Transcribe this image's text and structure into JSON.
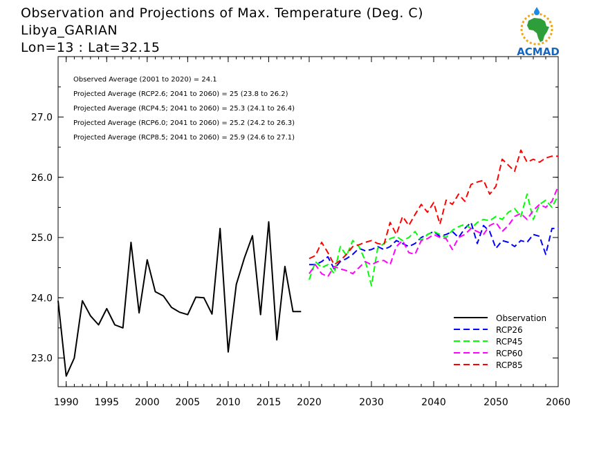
{
  "header": {
    "title": "Observation and Projections of Max. Temperature (Deg. C)",
    "location": "Libya_GARIAN",
    "coords": "Lon=13 : Lat=32.15"
  },
  "logo": {
    "text": "ACMAD",
    "icon": "africa-map-icon"
  },
  "colors": {
    "observation": "#000000",
    "rcp26": "#0000ff",
    "rcp45": "#00ff00",
    "rcp60": "#ff00ff",
    "rcp85": "#ff0000",
    "logo_text": "#1565c0",
    "logo_africa": "#2e9e3a",
    "logo_sun": "#f2a518"
  },
  "chart_data": {
    "type": "line",
    "title": "Observation and Projections of Max. Temperature (Deg. C)",
    "xlabel": "",
    "ylabel": "",
    "xlim": [
      1989,
      2060
    ],
    "ylim": [
      22.5,
      27.5
    ],
    "grid": false,
    "legend_position": "bottom-right",
    "x_tick_labels": [
      "1990",
      "1995",
      "2000",
      "2005",
      "2010",
      "2015",
      "2020",
      "2030",
      "2040",
      "2050",
      "2060"
    ],
    "y_tick_labels": [
      "23.0",
      "24.0",
      "25.0",
      "26.0",
      "27.0"
    ],
    "annotations": [
      "Observed Average (2001 to 2020) = 24.1",
      "Projected Average (RCP2.6; 2041 to 2060) = 25 (23.8 to 26.2)",
      "Projected Average (RCP4.5; 2041 to 2060) = 25.3 (24.1 to 26.4)",
      "Projected Average (RCP6.0; 2041 to 2060) = 25.2 (24.2 to 26.3)",
      "Projected Average (RCP8.5; 2041 to 2060) = 25.9 (24.6 to 27.1)"
    ],
    "series": [
      {
        "name": "Observation",
        "color": "#000000",
        "dash": false,
        "x": [
          1989,
          1990,
          1991,
          1992,
          1993,
          1994,
          1995,
          1996,
          1997,
          1998,
          1999,
          2000,
          2001,
          2002,
          2003,
          2004,
          2005,
          2006,
          2007,
          2008,
          2009,
          2010,
          2011,
          2012,
          2013,
          2014,
          2015,
          2016,
          2017,
          2018,
          2019
        ],
        "values": [
          23.95,
          22.7,
          23.0,
          23.95,
          23.7,
          23.55,
          23.82,
          23.55,
          23.5,
          24.92,
          23.75,
          24.63,
          24.1,
          24.03,
          23.84,
          23.76,
          23.72,
          24.01,
          24.0,
          23.73,
          25.15,
          23.1,
          24.22,
          24.66,
          25.03,
          23.72,
          25.26,
          23.3,
          24.52,
          23.77,
          23.77
        ]
      },
      {
        "name": "RCP26",
        "color": "#0000ff",
        "dash": true,
        "x": [
          2020,
          2021,
          2022,
          2023,
          2024,
          2025,
          2026,
          2027,
          2028,
          2029,
          2030,
          2031,
          2032,
          2033,
          2034,
          2035,
          2036,
          2037,
          2038,
          2039,
          2040,
          2041,
          2042,
          2043,
          2044,
          2045,
          2046,
          2047,
          2048,
          2049,
          2050,
          2051,
          2052,
          2053,
          2054,
          2055,
          2056,
          2057,
          2058,
          2059,
          2060
        ],
        "values": [
          24.55,
          24.55,
          24.6,
          24.68,
          24.48,
          24.6,
          24.65,
          24.72,
          24.82,
          24.78,
          24.8,
          24.85,
          24.8,
          24.85,
          24.95,
          24.9,
          24.85,
          24.9,
          25.0,
          25.05,
          25.1,
          25.02,
          25.05,
          25.1,
          25.0,
          25.15,
          25.25,
          24.9,
          25.2,
          25.1,
          24.82,
          24.95,
          24.92,
          24.85,
          24.95,
          24.92,
          25.05,
          25.02,
          24.72,
          25.15,
          25.15
        ]
      },
      {
        "name": "RCP45",
        "color": "#00ff00",
        "dash": true,
        "x": [
          2020,
          2021,
          2022,
          2023,
          2024,
          2025,
          2026,
          2027,
          2028,
          2029,
          2030,
          2031,
          2032,
          2033,
          2034,
          2035,
          2036,
          2037,
          2038,
          2039,
          2040,
          2041,
          2042,
          2043,
          2044,
          2045,
          2046,
          2047,
          2048,
          2049,
          2050,
          2051,
          2052,
          2053,
          2054,
          2055,
          2056,
          2057,
          2058,
          2059,
          2060
        ],
        "values": [
          24.3,
          24.6,
          24.5,
          24.55,
          24.4,
          24.85,
          24.7,
          24.95,
          24.85,
          24.62,
          24.2,
          24.82,
          24.9,
          24.98,
          25.02,
          24.95,
          25.0,
          25.1,
          24.95,
          25.05,
          25.1,
          25.05,
          25.0,
          25.12,
          25.18,
          25.22,
          25.15,
          25.25,
          25.3,
          25.28,
          25.35,
          25.3,
          25.42,
          25.48,
          25.35,
          25.72,
          25.3,
          25.55,
          25.62,
          25.5,
          25.7
        ]
      },
      {
        "name": "RCP60",
        "color": "#ff00ff",
        "dash": true,
        "x": [
          2020,
          2021,
          2022,
          2023,
          2024,
          2025,
          2026,
          2027,
          2028,
          2029,
          2030,
          2031,
          2032,
          2033,
          2034,
          2035,
          2036,
          2037,
          2038,
          2039,
          2040,
          2041,
          2042,
          2043,
          2044,
          2045,
          2046,
          2047,
          2048,
          2049,
          2050,
          2051,
          2052,
          2053,
          2054,
          2055,
          2056,
          2057,
          2058,
          2059,
          2060
        ],
        "values": [
          24.4,
          24.55,
          24.4,
          24.35,
          24.52,
          24.48,
          24.45,
          24.4,
          24.5,
          24.6,
          24.55,
          24.6,
          24.62,
          24.55,
          24.85,
          24.95,
          24.75,
          24.72,
          24.95,
          24.98,
          25.05,
          25.0,
          24.98,
          24.8,
          25.0,
          25.05,
          25.15,
          25.1,
          25.05,
          25.2,
          25.25,
          25.1,
          25.2,
          25.35,
          25.4,
          25.3,
          25.45,
          25.55,
          25.5,
          25.6,
          25.85
        ]
      },
      {
        "name": "RCP85",
        "color": "#ff0000",
        "dash": true,
        "x": [
          2020,
          2021,
          2022,
          2023,
          2024,
          2025,
          2026,
          2027,
          2028,
          2029,
          2030,
          2031,
          2032,
          2033,
          2034,
          2035,
          2036,
          2037,
          2038,
          2039,
          2040,
          2041,
          2042,
          2043,
          2044,
          2045,
          2046,
          2047,
          2048,
          2049,
          2050,
          2051,
          2052,
          2053,
          2054,
          2055,
          2056,
          2057,
          2058,
          2059,
          2060
        ],
        "values": [
          24.65,
          24.7,
          24.92,
          24.75,
          24.55,
          24.62,
          24.72,
          24.85,
          24.88,
          24.92,
          24.95,
          24.9,
          24.88,
          25.25,
          25.05,
          25.35,
          25.2,
          25.38,
          25.55,
          25.42,
          25.58,
          25.22,
          25.62,
          25.55,
          25.72,
          25.6,
          25.88,
          25.92,
          25.95,
          25.72,
          25.85,
          26.3,
          26.2,
          26.1,
          26.45,
          26.25,
          26.3,
          26.25,
          26.32,
          26.35,
          26.35
        ]
      }
    ]
  }
}
